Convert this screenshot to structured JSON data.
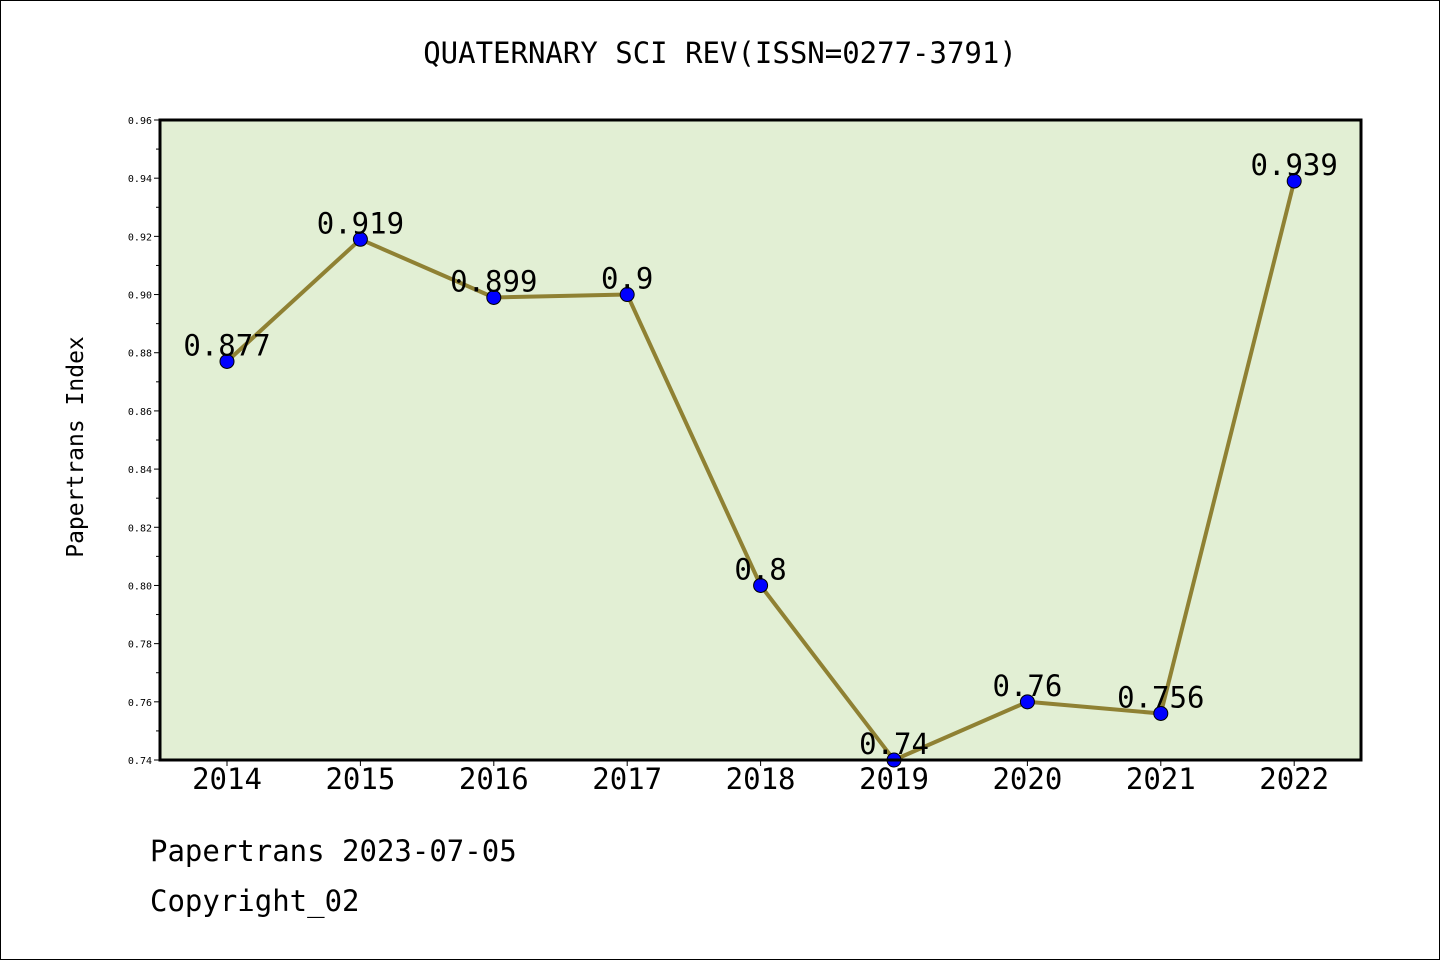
{
  "chart_data": {
    "type": "line",
    "title": "QUATERNARY SCI REV(ISSN=0277-3791)",
    "xlabel": "",
    "ylabel": "Papertrans Index",
    "categories": [
      "2014",
      "2015",
      "2016",
      "2017",
      "2018",
      "2019",
      "2020",
      "2021",
      "2022"
    ],
    "values": [
      0.877,
      0.919,
      0.899,
      0.9,
      0.8,
      0.74,
      0.76,
      0.756,
      0.939
    ],
    "data_labels": [
      "0.877",
      "0.919",
      "0.899",
      "0.9",
      "0.8",
      "0.74",
      "0.76",
      "0.756",
      "0.939"
    ],
    "ylim": [
      0.74,
      0.96
    ],
    "yticks": [
      "0.74",
      "0.76",
      "0.78",
      "0.80",
      "0.82",
      "0.84",
      "0.86",
      "0.88",
      "0.90",
      "0.92",
      "0.94",
      "0.96"
    ],
    "grid": false,
    "line_color": "#8f8133",
    "marker_color": "#0000ff",
    "plot_background": "#e2efd4"
  },
  "footer": {
    "line1": "Papertrans 2023-07-05",
    "line2": "Copyright_02"
  }
}
